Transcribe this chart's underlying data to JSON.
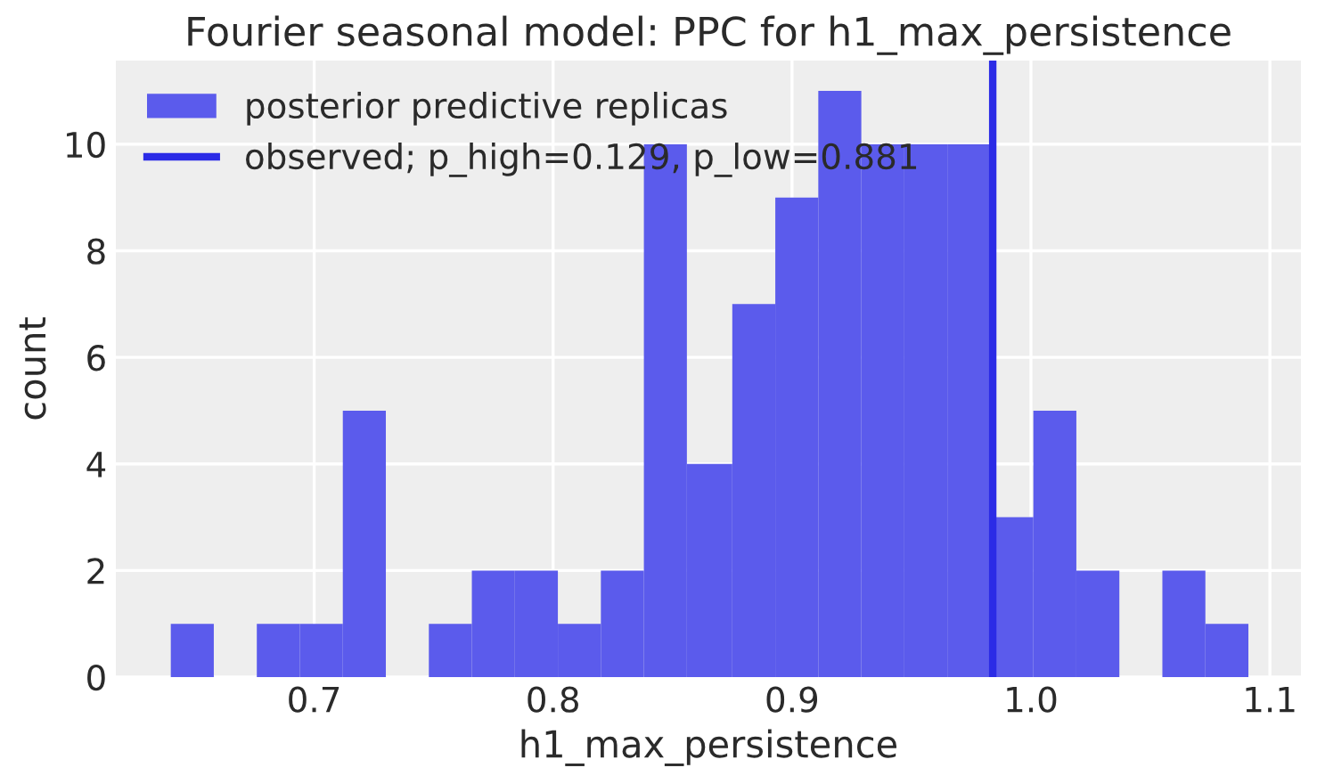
{
  "chart_data": {
    "type": "histogram",
    "title": "Fourier seasonal model: PPC for h1_max_persistence",
    "xlabel": "h1_max_persistence",
    "ylabel": "count",
    "bins": [
      0.64,
      0.658,
      0.676,
      0.694,
      0.712,
      0.73,
      0.748,
      0.766,
      0.784,
      0.802,
      0.82,
      0.838,
      0.856,
      0.875,
      0.893,
      0.911,
      0.929,
      0.947,
      0.965,
      0.983,
      1.001,
      1.019,
      1.037,
      1.055,
      1.073,
      1.091
    ],
    "series": [
      {
        "name": "posterior predictive replicas",
        "color": "#5b5bec",
        "values": [
          1,
          0,
          1,
          1,
          5,
          0,
          1,
          2,
          2,
          1,
          2,
          10,
          4,
          7,
          9,
          11,
          10,
          10,
          10,
          3,
          5,
          2,
          0,
          2,
          1
        ]
      },
      {
        "type": "line",
        "name": "observed; p_high=0.129, p_low=0.881",
        "color": "#2b2be6",
        "x": [
          0.984,
          0.984
        ],
        "values": [
          0,
          11.57
        ]
      }
    ],
    "xlim": [
      0.617,
      1.113
    ],
    "ylim": [
      0,
      11.57
    ],
    "xticks": [
      0.7,
      0.8,
      0.9,
      {
        "value": 1.0,
        "label": "1.0"
      },
      1.1
    ],
    "yticks": [
      0,
      2,
      4,
      6,
      8,
      10
    ],
    "grid": true,
    "legend": "top left"
  }
}
